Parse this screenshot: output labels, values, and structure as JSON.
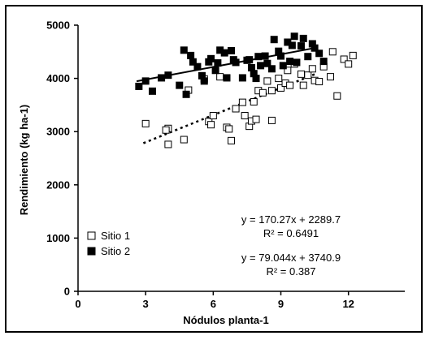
{
  "chart_data": {
    "type": "scatter",
    "title": "",
    "xlabel": "Nódulos planta-1",
    "ylabel": "Rendimiento (kg ha-1)",
    "xlim": [
      0,
      14.5
    ],
    "ylim": [
      0,
      5000
    ],
    "xticks": [
      "0",
      "3",
      "6",
      "9",
      "12"
    ],
    "yticks": [
      "0",
      "1000",
      "2000",
      "3000",
      "4000",
      "5000"
    ],
    "grid": false,
    "legend_position": "bottom-left",
    "series": [
      {
        "name": "Sitio 1",
        "marker": "open-square",
        "color": "#000000",
        "points": [
          [
            3.0,
            3150
          ],
          [
            4.0,
            2760
          ],
          [
            4.0,
            3060
          ],
          [
            3.9,
            3030
          ],
          [
            4.7,
            2850
          ],
          [
            4.9,
            3780
          ],
          [
            5.6,
            3990
          ],
          [
            5.8,
            3190
          ],
          [
            6.0,
            3300
          ],
          [
            5.9,
            3130
          ],
          [
            6.3,
            4030
          ],
          [
            6.6,
            3080
          ],
          [
            6.7,
            3050
          ],
          [
            6.8,
            2830
          ],
          [
            7.0,
            3430
          ],
          [
            7.3,
            3550
          ],
          [
            7.4,
            3300
          ],
          [
            7.6,
            3100
          ],
          [
            7.7,
            3200
          ],
          [
            7.8,
            3560
          ],
          [
            7.9,
            3230
          ],
          [
            8.0,
            3770
          ],
          [
            8.2,
            3730
          ],
          [
            8.4,
            3950
          ],
          [
            8.6,
            3770
          ],
          [
            8.6,
            3210
          ],
          [
            8.9,
            4000
          ],
          [
            9.0,
            3820
          ],
          [
            9.2,
            3910
          ],
          [
            9.3,
            4150
          ],
          [
            9.4,
            3870
          ],
          [
            9.6,
            4270
          ],
          [
            9.9,
            4080
          ],
          [
            10.0,
            3870
          ],
          [
            10.2,
            4060
          ],
          [
            10.4,
            4180
          ],
          [
            10.5,
            3960
          ],
          [
            10.7,
            3940
          ],
          [
            10.9,
            4220
          ],
          [
            11.2,
            4030
          ],
          [
            11.3,
            4500
          ],
          [
            11.5,
            3670
          ],
          [
            11.8,
            4360
          ],
          [
            12.0,
            4270
          ],
          [
            12.2,
            4430
          ]
        ]
      },
      {
        "name": "Sitio 2",
        "marker": "filled-square",
        "color": "#000000",
        "points": [
          [
            2.7,
            3850
          ],
          [
            3.0,
            3950
          ],
          [
            3.3,
            3760
          ],
          [
            3.7,
            4010
          ],
          [
            4.0,
            4060
          ],
          [
            4.5,
            3870
          ],
          [
            4.7,
            4530
          ],
          [
            4.8,
            3700
          ],
          [
            5.0,
            4430
          ],
          [
            5.1,
            4310
          ],
          [
            5.3,
            4220
          ],
          [
            5.5,
            4050
          ],
          [
            5.6,
            3950
          ],
          [
            5.8,
            4310
          ],
          [
            5.9,
            4370
          ],
          [
            6.1,
            4150
          ],
          [
            6.2,
            4290
          ],
          [
            6.3,
            4530
          ],
          [
            6.5,
            4480
          ],
          [
            6.6,
            4010
          ],
          [
            6.8,
            4520
          ],
          [
            6.9,
            4350
          ],
          [
            7.0,
            4300
          ],
          [
            7.3,
            4010
          ],
          [
            7.5,
            4340
          ],
          [
            7.6,
            4350
          ],
          [
            7.7,
            4200
          ],
          [
            7.8,
            4090
          ],
          [
            7.9,
            4000
          ],
          [
            8.0,
            4410
          ],
          [
            8.1,
            4240
          ],
          [
            8.3,
            4420
          ],
          [
            8.4,
            4280
          ],
          [
            8.6,
            4180
          ],
          [
            8.7,
            4730
          ],
          [
            8.9,
            4510
          ],
          [
            9.0,
            4420
          ],
          [
            9.1,
            4240
          ],
          [
            9.3,
            4680
          ],
          [
            9.4,
            4320
          ],
          [
            9.5,
            4620
          ],
          [
            9.6,
            4790
          ],
          [
            9.7,
            4300
          ],
          [
            9.9,
            4610
          ],
          [
            10.0,
            4750
          ],
          [
            10.2,
            4410
          ],
          [
            10.4,
            4650
          ],
          [
            10.5,
            4570
          ],
          [
            10.7,
            4470
          ],
          [
            10.9,
            4320
          ]
        ]
      }
    ],
    "trendlines": [
      {
        "series": "Sitio 1",
        "style": "dotted",
        "slope": 170.27,
        "intercept": 2289.7,
        "x_range": [
          2.9,
          10.6
        ],
        "equation": "y = 170.27x + 2289.7",
        "r2": "R² = 0.6491"
      },
      {
        "series": "Sitio 2",
        "style": "solid",
        "slope": 79.044,
        "intercept": 3740.9,
        "x_range": [
          2.6,
          10.6
        ],
        "equation": "y = 79.044x + 3740.9",
        "r2": "R² = 0.387"
      }
    ]
  }
}
